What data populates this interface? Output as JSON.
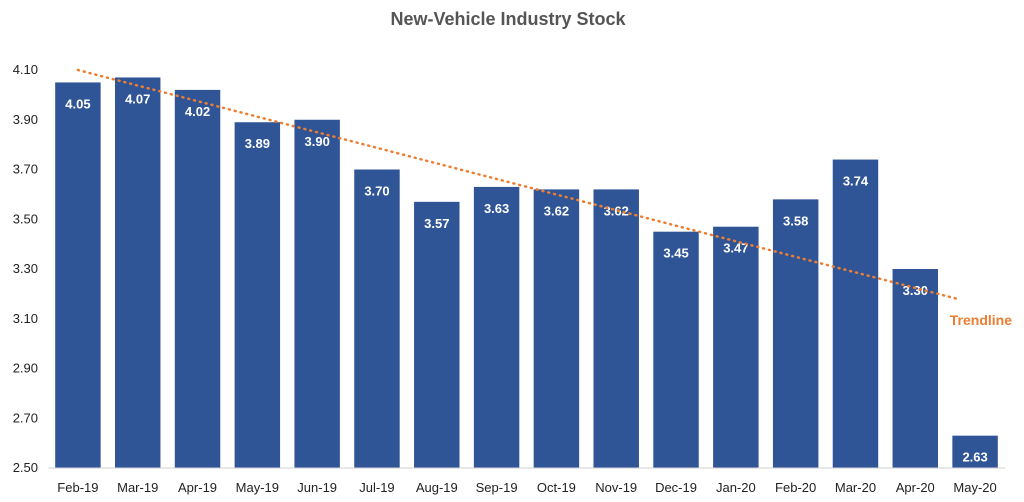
{
  "chart_data": {
    "type": "bar",
    "title": "New-Vehicle Industry Stock",
    "xlabel": "",
    "ylabel": "",
    "categories": [
      "Feb-19",
      "Mar-19",
      "Apr-19",
      "May-19",
      "Jun-19",
      "Jul-19",
      "Aug-19",
      "Sep-19",
      "Oct-19",
      "Nov-19",
      "Dec-19",
      "Jan-20",
      "Feb-20",
      "Mar-20",
      "Apr-20",
      "May-20"
    ],
    "values": [
      4.05,
      4.07,
      4.02,
      3.89,
      3.9,
      3.7,
      3.57,
      3.63,
      3.62,
      3.62,
      3.45,
      3.47,
      3.58,
      3.74,
      3.3,
      2.63
    ],
    "data_labels": [
      "4.05",
      "4.07",
      "4.02",
      "3.89",
      "3.90",
      "3.70",
      "3.57",
      "3.63",
      "3.62",
      "3.62",
      "3.45",
      "3.47",
      "3.58",
      "3.74",
      "3.30",
      "2.63"
    ],
    "ylim": [
      2.5,
      4.1
    ],
    "yticks": [
      "4.10",
      "3.90",
      "3.70",
      "3.50",
      "3.30",
      "3.10",
      "2.90",
      "2.70",
      "2.50"
    ],
    "grid": false,
    "legend": "none",
    "bar_color": "#2F5597",
    "trendline": {
      "label": "Trendline",
      "color": "#ED7D31",
      "style": "dotted",
      "start_value": 4.1,
      "end_value": 3.18
    }
  }
}
